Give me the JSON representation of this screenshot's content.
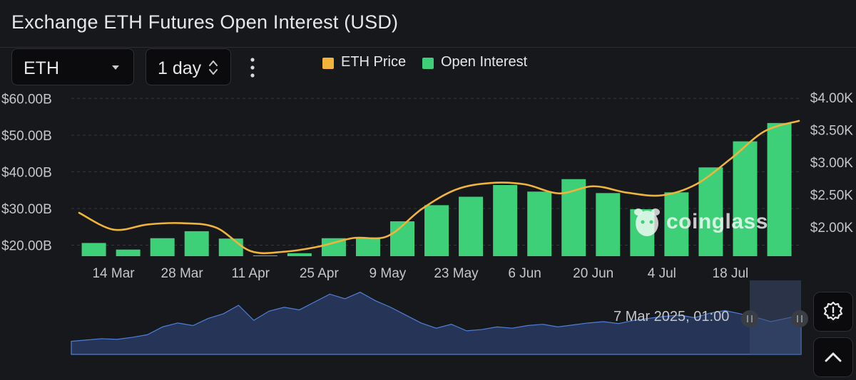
{
  "header": {
    "title": "Exchange ETH Futures Open Interest (USD)"
  },
  "controls": {
    "coin_select": "ETH",
    "interval_select": "1 day"
  },
  "legend": {
    "price_label": "ETH Price",
    "oi_label": "Open Interest"
  },
  "colors": {
    "price_line": "#f0b43c",
    "oi_bar": "#3ecf79",
    "background": "#17181b",
    "navigator_fill": "#253457",
    "navigator_line": "#4f7fd8"
  },
  "watermark": {
    "brand": "coinglass"
  },
  "navigator": {
    "date_label": "7 Mar 2025, 01:00"
  },
  "chart_data": {
    "type": "bar",
    "title": "Exchange ETH Futures Open Interest (USD)",
    "x_tick_labels": [
      "14 Mar",
      "28 Mar",
      "11 Apr",
      "25 Apr",
      "9 May",
      "23 May",
      "6 Jun",
      "20 Jun",
      "4 Jul",
      "18 Jul"
    ],
    "y_left": {
      "label": "Open Interest",
      "ticks": [
        "$60.00B",
        "$50.00B",
        "$40.00B",
        "$30.00B",
        "$20.00B"
      ],
      "tick_values": [
        60,
        50,
        40,
        30,
        20
      ],
      "range": [
        17,
        62
      ],
      "unit": "B USD"
    },
    "y_right": {
      "label": "ETH Price",
      "ticks": [
        "$4.00K",
        "$3.50K",
        "$3.00K",
        "$2.50K",
        "$2.00K"
      ],
      "tick_values": [
        4000,
        3500,
        3000,
        2500,
        2000
      ],
      "range": [
        1550,
        4100
      ],
      "unit": "USD"
    },
    "series": [
      {
        "name": "Open Interest",
        "type": "bar",
        "x_days": [
          3,
          10,
          17,
          24,
          31,
          38,
          45,
          52,
          59,
          66,
          73,
          80,
          87,
          94,
          101,
          108,
          115,
          122,
          129,
          136,
          143
        ],
        "values": [
          20.6,
          18.8,
          21.9,
          23.8,
          21.8,
          17.2,
          17.8,
          21.9,
          22.1,
          26.5,
          30.9,
          33.2,
          36.4,
          34.6,
          38.0,
          34.2,
          29.8,
          34.4,
          41.2,
          48.3,
          53.3
        ]
      },
      {
        "name": "ETH Price",
        "type": "line",
        "x_days": [
          0,
          7,
          14,
          21,
          28,
          35,
          42,
          49,
          56,
          63,
          70,
          77,
          84,
          91,
          98,
          105,
          112,
          119,
          126,
          133,
          140,
          147
        ],
        "values": [
          2220,
          1960,
          2040,
          2060,
          1990,
          1630,
          1620,
          1700,
          1830,
          1860,
          2280,
          2580,
          2680,
          2660,
          2520,
          2630,
          2530,
          2490,
          2660,
          3050,
          3480,
          3640
        ]
      }
    ],
    "x_ticks_days": [
      7,
      21,
      35,
      49,
      63,
      77,
      91,
      105,
      119,
      133
    ],
    "x_range_days": [
      -1.6,
      147
    ],
    "navigator_series": [
      0.2,
      0.22,
      0.24,
      0.23,
      0.26,
      0.3,
      0.42,
      0.48,
      0.44,
      0.55,
      0.62,
      0.75,
      0.52,
      0.66,
      0.72,
      0.68,
      0.8,
      0.92,
      0.85,
      0.95,
      0.82,
      0.72,
      0.6,
      0.48,
      0.4,
      0.46,
      0.36,
      0.38,
      0.42,
      0.4,
      0.44,
      0.46,
      0.42,
      0.45,
      0.48,
      0.5,
      0.47,
      0.52,
      0.55,
      0.58,
      0.6,
      0.56,
      0.63,
      0.67,
      0.62,
      0.57,
      0.5,
      0.55,
      0.6
    ]
  }
}
